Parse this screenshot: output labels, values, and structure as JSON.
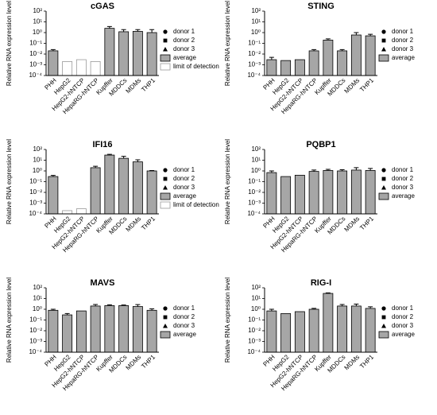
{
  "chart_data": [
    {
      "type": "bar",
      "title": "cGAS",
      "y_label": "Relative RNA expression level",
      "log_y": true,
      "categories": [
        "PHH",
        "HepG2",
        "HepG2-hNTCP",
        "HepaRG-hNTCP",
        "Kupffer",
        "MDDCs",
        "MDMs",
        "THP1"
      ],
      "series": [
        {
          "name": "average",
          "color": "#a6a6a6",
          "values": [
            0.02,
            null,
            null,
            null,
            2.5,
            1.2,
            1.3,
            1.0
          ],
          "errors": [
            0.006,
            null,
            null,
            null,
            1.2,
            0.7,
            0.6,
            0.9
          ]
        },
        {
          "name": "limit of detection",
          "color": "#ffffff",
          "values": [
            null,
            0.002,
            0.003,
            0.002,
            null,
            null,
            null,
            null
          ]
        }
      ],
      "donors": [
        "donor 1",
        "donor 2",
        "donor 3"
      ],
      "ylim": [
        0.0001,
        100
      ],
      "yticks": [
        {
          "value": 0.0001,
          "label": "10⁻⁴"
        },
        {
          "value": 0.001,
          "label": "10⁻³"
        },
        {
          "value": 0.01,
          "label": "10⁻²"
        },
        {
          "value": 0.1,
          "label": "10⁻¹"
        },
        {
          "value": 1,
          "label": "10⁰"
        },
        {
          "value": 10,
          "label": "10¹"
        },
        {
          "value": 100,
          "label": "10²"
        }
      ]
    },
    {
      "type": "bar",
      "title": "STING",
      "y_label": "Relative RNA expression level",
      "log_y": true,
      "categories": [
        "PHH",
        "HepG2",
        "HepG2-hNTCP",
        "HepaRG-hNTCP",
        "Kupffer",
        "MDDCs",
        "MDMs",
        "THP1"
      ],
      "series": [
        {
          "name": "average",
          "color": "#a6a6a6",
          "values": [
            0.003,
            0.0025,
            0.003,
            0.02,
            0.2,
            0.02,
            0.6,
            0.5
          ],
          "errors": [
            0.002,
            null,
            null,
            0.006,
            0.06,
            0.006,
            0.4,
            0.2
          ]
        }
      ],
      "donors": [
        "donor 1",
        "donor 2",
        "donor 3"
      ],
      "ylim": [
        0.0001,
        100
      ],
      "yticks": [
        {
          "value": 0.0001,
          "label": "10⁻⁴"
        },
        {
          "value": 0.001,
          "label": "10⁻³"
        },
        {
          "value": 0.01,
          "label": "10⁻²"
        },
        {
          "value": 0.1,
          "label": "10⁻¹"
        },
        {
          "value": 1,
          "label": "10⁰"
        },
        {
          "value": 10,
          "label": "10¹"
        },
        {
          "value": 100,
          "label": "10²"
        }
      ]
    },
    {
      "type": "bar",
      "title": "IFI16",
      "y_label": "Relative RNA expression level",
      "log_y": true,
      "categories": [
        "PHH",
        "HepG2",
        "HepG2-hNTCP",
        "HepaRG-hNTCP",
        "Kupffer",
        "MDDCs",
        "MDMs",
        "THP1"
      ],
      "series": [
        {
          "name": "average",
          "color": "#a6a6a6",
          "values": [
            0.3,
            null,
            null,
            2,
            30,
            15,
            7,
            1
          ],
          "errors": [
            0.08,
            null,
            null,
            0.7,
            5,
            8,
            4,
            0.1
          ]
        },
        {
          "name": "limit of detection",
          "color": "#ffffff",
          "values": [
            null,
            0.0002,
            0.0003,
            null,
            null,
            null,
            null,
            null
          ]
        }
      ],
      "donors": [
        "donor 1",
        "donor 2",
        "donor 3"
      ],
      "ylim": [
        0.0001,
        100
      ],
      "yticks": [
        {
          "value": 0.0001,
          "label": "10⁻⁴"
        },
        {
          "value": 0.001,
          "label": "10⁻³"
        },
        {
          "value": 0.01,
          "label": "10⁻²"
        },
        {
          "value": 0.1,
          "label": "10⁻¹"
        },
        {
          "value": 1,
          "label": "10⁰"
        },
        {
          "value": 10,
          "label": "10¹"
        },
        {
          "value": 100,
          "label": "10²"
        }
      ]
    },
    {
      "type": "bar",
      "title": "PQBP1",
      "y_label": "Relative RNA expression level",
      "log_y": true,
      "categories": [
        "PHH",
        "HepG2",
        "HepG2-hNTCP",
        "HepaRG-hNTCP",
        "Kupffer",
        "MDDCs",
        "MDMs",
        "THP1"
      ],
      "series": [
        {
          "name": "average",
          "color": "#a6a6a6",
          "values": [
            0.7,
            0.3,
            0.4,
            0.9,
            1.1,
            1.0,
            1.2,
            1.1
          ],
          "errors": [
            0.3,
            null,
            null,
            0.3,
            0.3,
            0.3,
            0.8,
            0.6
          ]
        }
      ],
      "donors": [
        "donor 1",
        "donor 2",
        "donor 3"
      ],
      "ylim": [
        0.0001,
        100
      ],
      "yticks": [
        {
          "value": 0.0001,
          "label": "10⁻⁴"
        },
        {
          "value": 0.001,
          "label": "10⁻³"
        },
        {
          "value": 0.01,
          "label": "10⁻²"
        },
        {
          "value": 0.1,
          "label": "10⁻¹"
        },
        {
          "value": 1,
          "label": "10⁰"
        },
        {
          "value": 10,
          "label": "10¹"
        },
        {
          "value": 100,
          "label": "10²"
        }
      ]
    },
    {
      "type": "bar",
      "title": "MAVS",
      "y_label": "Relative RNA expression level",
      "log_y": true,
      "categories": [
        "PHH",
        "HepG2",
        "HepG2-hNTCP",
        "HepaRG-hNTCP",
        "Kupffer",
        "MDDCs",
        "MDMs",
        "THP1"
      ],
      "series": [
        {
          "name": "average",
          "color": "#a6a6a6",
          "values": [
            0.8,
            0.3,
            0.7,
            2,
            2.2,
            2.2,
            1.8,
            0.8
          ],
          "errors": [
            0.2,
            0.1,
            null,
            0.8,
            0.4,
            0.3,
            0.9,
            0.3
          ]
        }
      ],
      "donors": [
        "donor 1",
        "donor 2",
        "donor 3"
      ],
      "ylim": [
        0.0001,
        100
      ],
      "yticks": [
        {
          "value": 0.0001,
          "label": "10⁻⁴"
        },
        {
          "value": 0.001,
          "label": "10⁻³"
        },
        {
          "value": 0.01,
          "label": "10⁻²"
        },
        {
          "value": 0.1,
          "label": "10⁻¹"
        },
        {
          "value": 1,
          "label": "10⁰"
        },
        {
          "value": 10,
          "label": "10¹"
        },
        {
          "value": 100,
          "label": "10²"
        }
      ]
    },
    {
      "type": "bar",
      "title": "RIG-I",
      "y_label": "Relative RNA expression level",
      "log_y": true,
      "categories": [
        "PHH",
        "HepG2",
        "HepG2-hNTCP",
        "HepaRG-hNTCP",
        "Kupffer",
        "MDDCs",
        "MDMs",
        "THP1"
      ],
      "series": [
        {
          "name": "average",
          "color": "#a6a6a6",
          "values": [
            0.7,
            0.4,
            0.6,
            1,
            30,
            2,
            2,
            1.2
          ],
          "errors": [
            0.3,
            null,
            null,
            0.2,
            4,
            0.8,
            1,
            0.5
          ]
        }
      ],
      "donors": [
        "donor 1",
        "donor 2",
        "donor 3"
      ],
      "ylim": [
        0.0001,
        100
      ],
      "yticks": [
        {
          "value": 0.0001,
          "label": "10⁻⁴"
        },
        {
          "value": 0.001,
          "label": "10⁻³"
        },
        {
          "value": 0.01,
          "label": "10⁻²"
        },
        {
          "value": 0.1,
          "label": "10⁻¹"
        },
        {
          "value": 1,
          "label": "10⁰"
        },
        {
          "value": 10,
          "label": "10¹"
        },
        {
          "value": 100,
          "label": "10²"
        }
      ]
    }
  ]
}
